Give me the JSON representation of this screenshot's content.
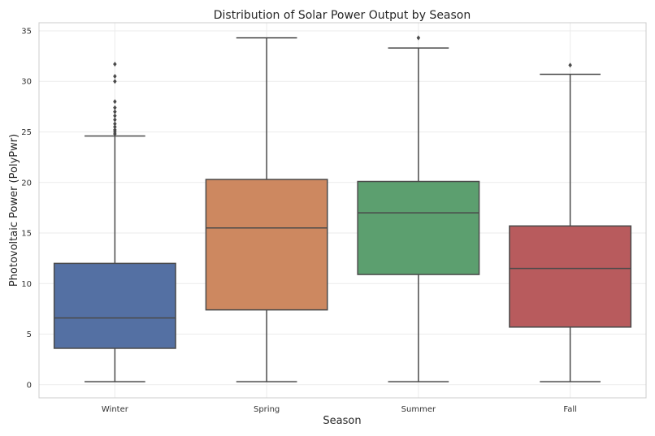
{
  "chart_data": {
    "type": "box",
    "title": "Distribution of Solar Power Output by Season",
    "xlabel": "Season",
    "ylabel": "Photovoltaic Power (PolyPwr)",
    "ylim": [
      -1.3,
      35.8
    ],
    "yticks": [
      0,
      5,
      10,
      15,
      20,
      25,
      30,
      35
    ],
    "grid": true,
    "categories": [
      "Winter",
      "Spring",
      "Summer",
      "Fall"
    ],
    "colors": [
      "#5470a3",
      "#cd8860",
      "#5c9f6f",
      "#b85b5d"
    ],
    "boxes": [
      {
        "name": "Winter",
        "whisker_low": 0.3,
        "q1": 3.6,
        "median": 6.6,
        "q3": 12.0,
        "whisker_high": 24.6,
        "outliers": [
          24.8,
          25.0,
          25.2,
          25.5,
          25.8,
          26.2,
          26.6,
          27.0,
          27.4,
          28.0,
          30.0,
          30.5,
          31.7
        ]
      },
      {
        "name": "Spring",
        "whisker_low": 0.3,
        "q1": 7.4,
        "median": 15.5,
        "q3": 20.3,
        "whisker_high": 34.3,
        "outliers": []
      },
      {
        "name": "Summer",
        "whisker_low": 0.3,
        "q1": 10.9,
        "median": 17.0,
        "q3": 20.1,
        "whisker_high": 33.3,
        "outliers": [
          34.3
        ]
      },
      {
        "name": "Fall",
        "whisker_low": 0.3,
        "q1": 5.7,
        "median": 11.5,
        "q3": 15.7,
        "whisker_high": 30.7,
        "outliers": [
          31.6
        ]
      }
    ]
  }
}
